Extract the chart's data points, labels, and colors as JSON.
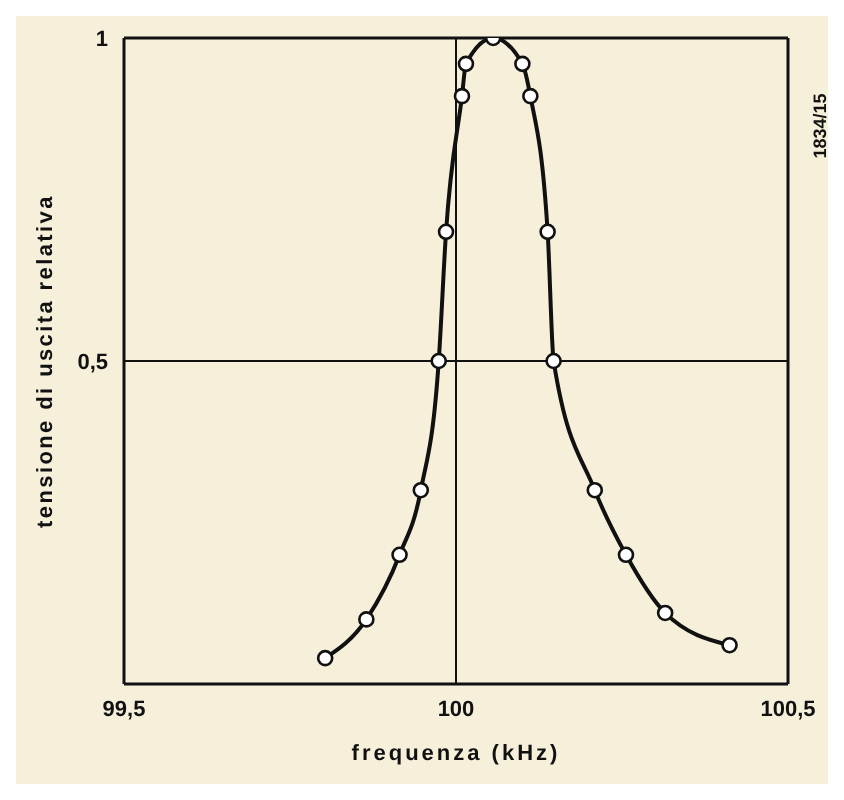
{
  "chart_data": {
    "type": "line",
    "xlabel": "frequenza (kHz)",
    "ylabel": "tensione di uscita relativa",
    "annotations": [
      "1834/15"
    ],
    "x": [
      99.803,
      99.865,
      99.915,
      99.947,
      99.974,
      99.985,
      100.009,
      100.015,
      100.056,
      100.1,
      100.112,
      100.138,
      100.147,
      100.209,
      100.256,
      100.315,
      100.412
    ],
    "series": [
      {
        "color": "#111111",
        "values": [
          0.04,
          0.1,
          0.2,
          0.3,
          0.5,
          0.7,
          0.91,
          0.96,
          1.0,
          0.96,
          0.91,
          0.7,
          0.5,
          0.3,
          0.2,
          0.11,
          0.06
        ]
      }
    ],
    "xlim": [
      99.5,
      100.5
    ],
    "xticks": [
      {
        "value": 99.5,
        "label": "99,5"
      },
      100,
      {
        "value": 100.5,
        "label": "100,5"
      }
    ],
    "ylim": [
      0,
      1
    ],
    "yticks": [
      {
        "value": 0.5,
        "label": "0,5"
      },
      1
    ],
    "grid": true,
    "marker": "circle",
    "line_style": "solid",
    "legend": false
  }
}
